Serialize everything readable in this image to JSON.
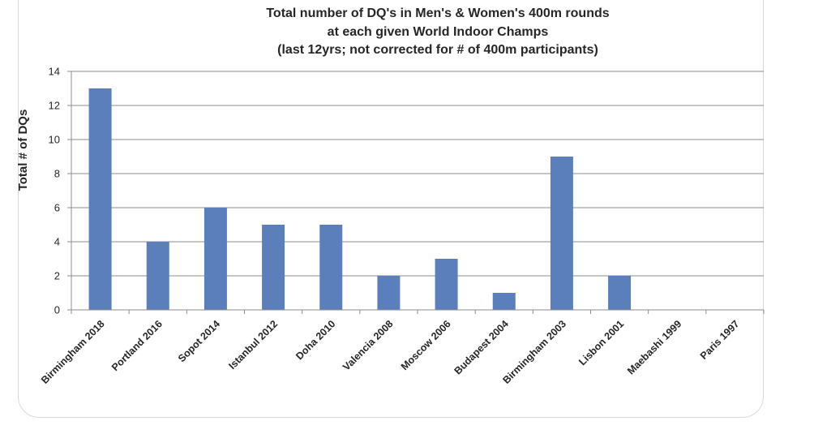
{
  "chart_data": {
    "type": "bar",
    "title_lines": [
      "Total number of DQ's in Men's & Women's 400m rounds",
      "at each given  World Indoor Champs",
      "(last  12yrs; not corrected for # of 400m participants)"
    ],
    "xlabel": "",
    "ylabel": "Total # of DQs",
    "categories": [
      "Birmingham 2018",
      "Portland 2016",
      "Sopot 2014",
      "Istanbul 2012",
      "Doha 2010",
      "Valencia 2008",
      "Moscow 2006",
      "Budapest 2004",
      "Birmingham 2003",
      "Lisbon 2001",
      "Maebashi 1999",
      "Paris 1997"
    ],
    "values": [
      13,
      4,
      6,
      5,
      5,
      2,
      3,
      1,
      9,
      2,
      0,
      0
    ],
    "ylim": [
      0,
      14
    ],
    "yticks": [
      0,
      2,
      4,
      6,
      8,
      10,
      12,
      14
    ],
    "grid": true,
    "legend": "none",
    "bar_color": "#5b7fbb",
    "grid_color": "#8c8c8c"
  }
}
